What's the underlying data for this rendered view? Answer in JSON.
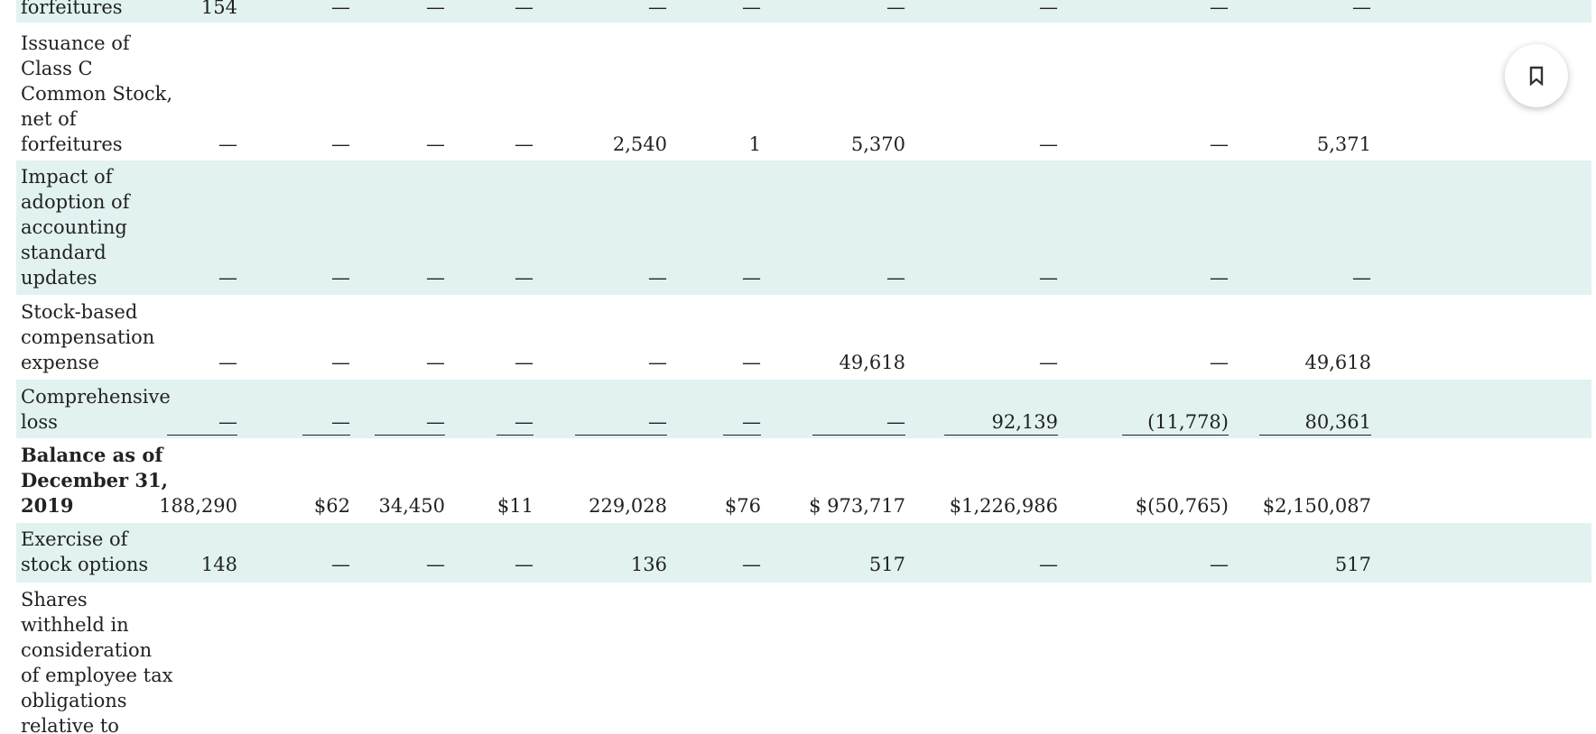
{
  "rows": [
    {
      "label": [
        "forfeitures"
      ],
      "bold": false,
      "shaded": true,
      "cells": [
        "154",
        "—",
        "—",
        "—",
        "—",
        "—",
        "—",
        "—",
        "—",
        "—"
      ]
    },
    {
      "label": [
        "Issuance of",
        "Class C",
        "Common Stock,",
        "net of",
        "forfeitures"
      ],
      "bold": false,
      "shaded": false,
      "cells": [
        "—",
        "—",
        "—",
        "—",
        "2,540",
        "1",
        "5,370",
        "—",
        "—",
        "5,371"
      ]
    },
    {
      "label": [
        "Impact of",
        "adoption of",
        "accounting",
        "standard",
        "updates"
      ],
      "bold": false,
      "shaded": true,
      "cells": [
        "—",
        "—",
        "—",
        "—",
        "—",
        "—",
        "—",
        "—",
        "—",
        "—"
      ]
    },
    {
      "label": [
        "Stock-based",
        "compensation",
        "expense"
      ],
      "bold": false,
      "shaded": false,
      "cells": [
        "—",
        "—",
        "—",
        "—",
        "—",
        "—",
        "49,618",
        "—",
        "—",
        "49,618"
      ]
    },
    {
      "label": [
        "Comprehensive",
        "loss"
      ],
      "bold": false,
      "shaded": true,
      "cells": [
        "—",
        "—",
        "—",
        "—",
        "—",
        "—",
        "—",
        "92,139",
        "(11,778)",
        "80,361"
      ]
    },
    {
      "label": [
        "Balance as of",
        "December 31,",
        "2019"
      ],
      "bold": true,
      "shaded": false,
      "cells": [
        "188,290",
        "$62",
        "34,450",
        "$11",
        "229,028",
        "$76",
        "$ 973,717",
        "$1,226,986",
        "$(50,765)",
        "$2,150,087"
      ]
    },
    {
      "label": [
        "Exercise of",
        "stock options"
      ],
      "bold": false,
      "shaded": true,
      "cells": [
        "148",
        "—",
        "—",
        "—",
        "136",
        "—",
        "517",
        "—",
        "—",
        "517"
      ]
    },
    {
      "label": [
        "Shares",
        "withheld in",
        "consideration",
        "of employee tax",
        "obligations",
        "relative to"
      ],
      "bold": false,
      "shaded": false,
      "cells": [
        "",
        "",
        "",
        "",
        "",
        "",
        "",
        "",
        "",
        ""
      ]
    }
  ],
  "bookmark_icon": "bookmark-icon"
}
